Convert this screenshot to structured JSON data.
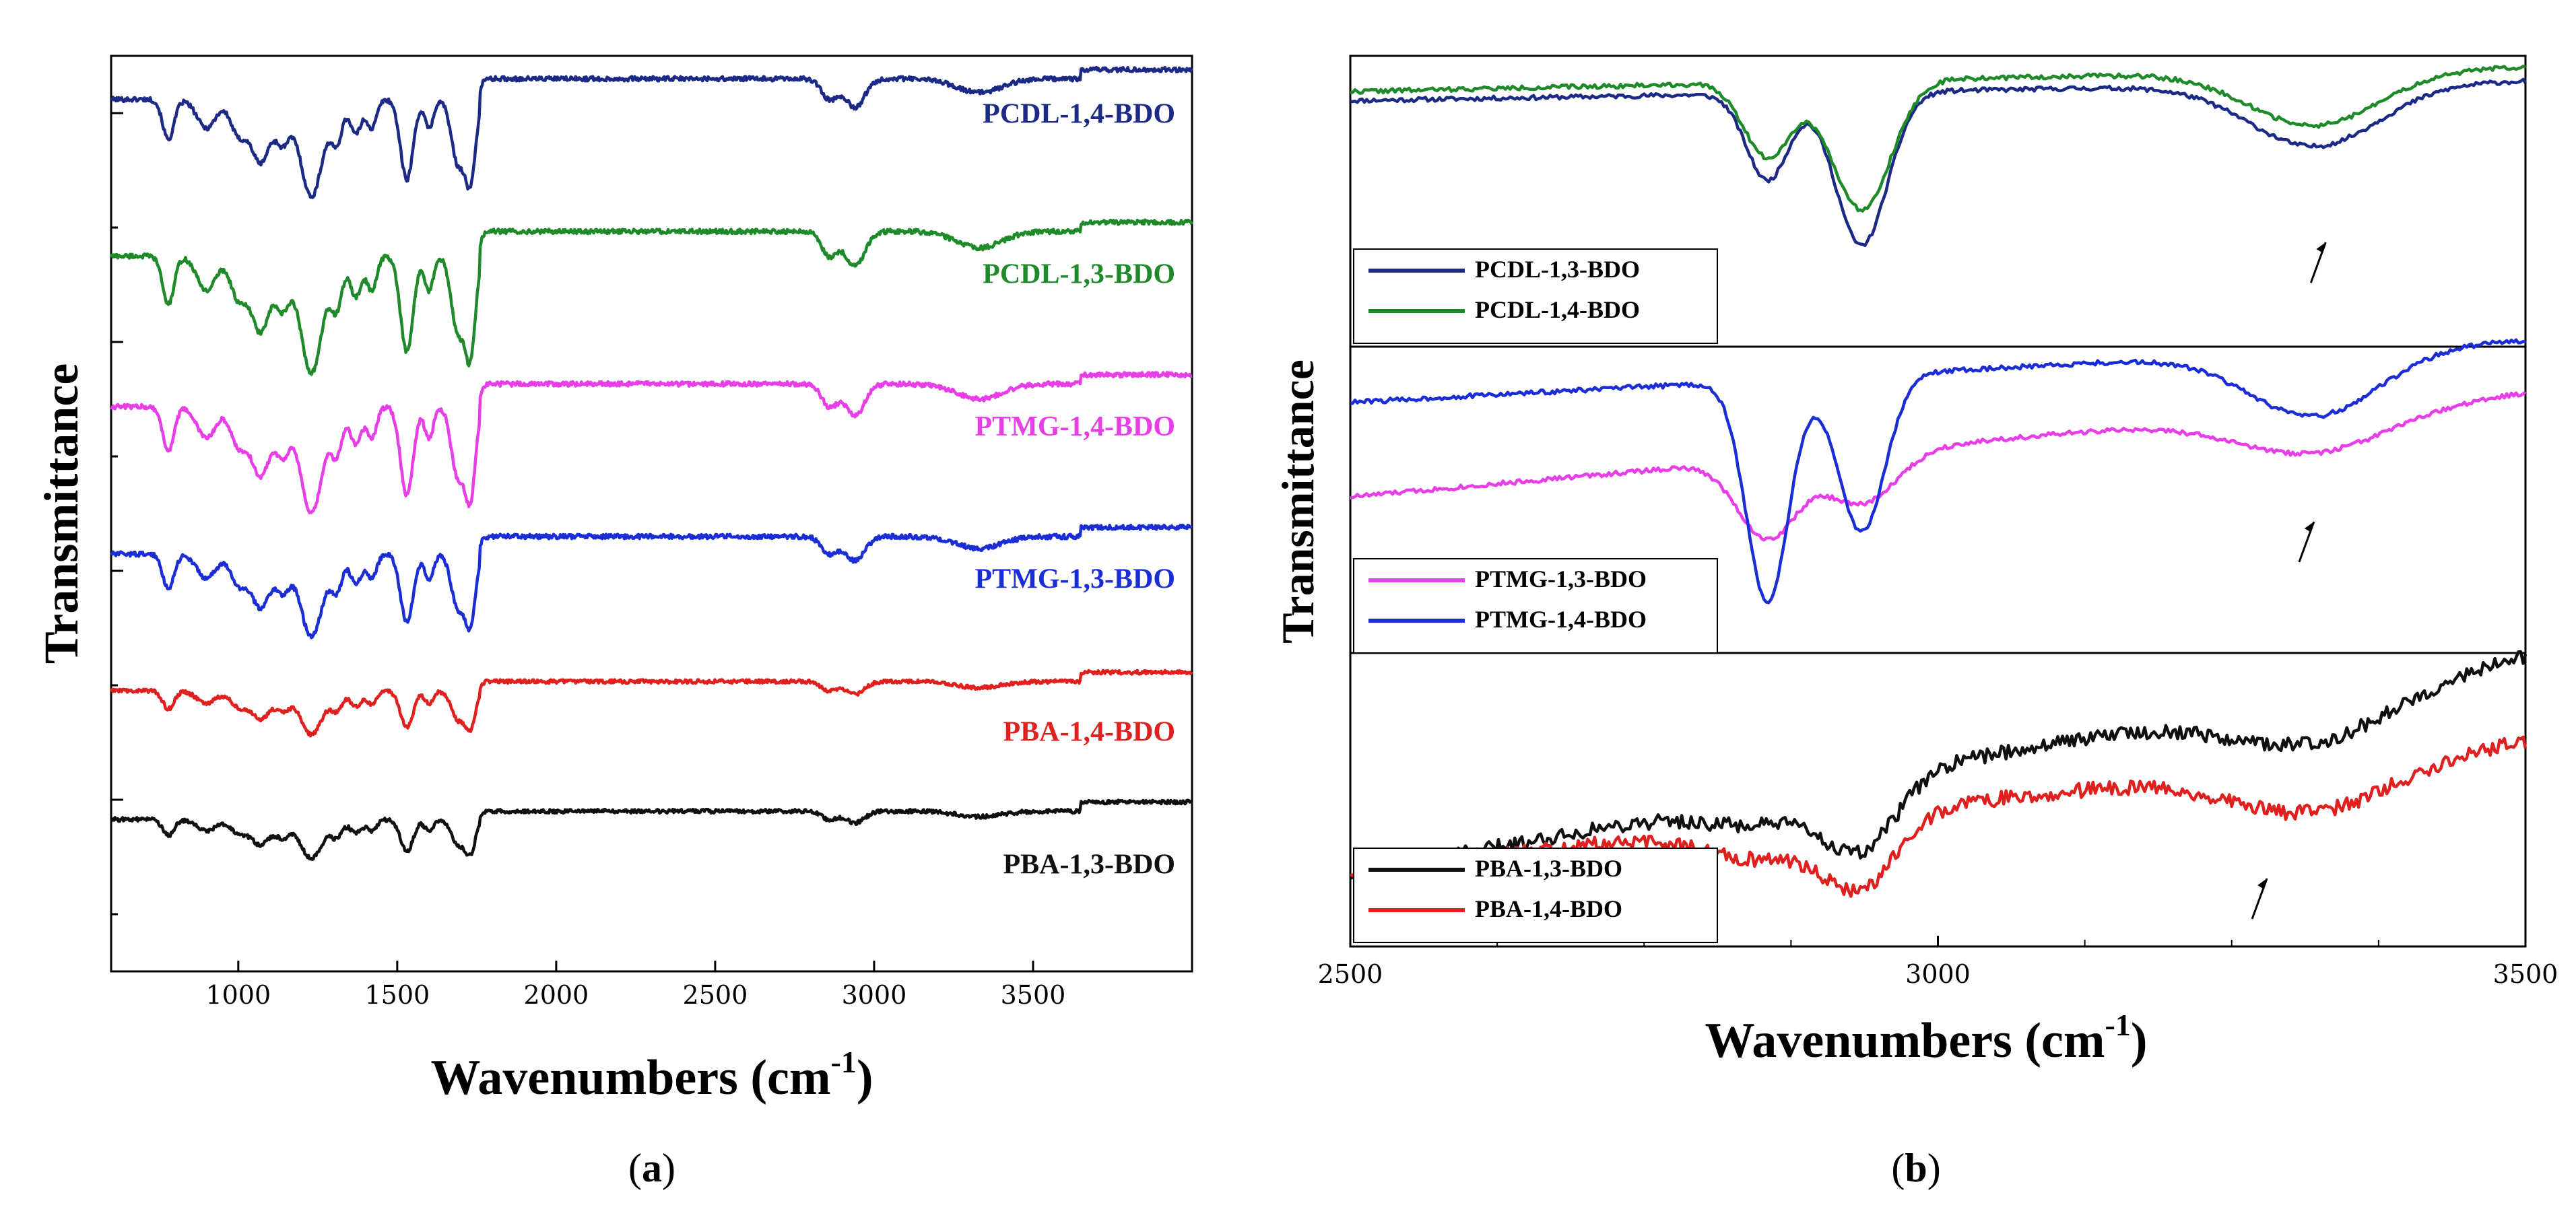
{
  "chart_data": [
    {
      "id": "panel-a",
      "type": "line",
      "caption_prefix": "(",
      "caption_letter": "a",
      "caption_suffix": ")",
      "xlabel": "Wavenumbers (cm",
      "xlabel_sup": "-1",
      "xlabel_close": ")",
      "ylabel": "Transmittance",
      "xlim": [
        600,
        4000
      ],
      "xticks": [
        1000,
        1500,
        2000,
        2500,
        3000,
        3500
      ],
      "series": [
        {
          "name": "PCDL-1,4-BDO",
          "color": "#1c2a86",
          "offset": 5.0,
          "scale": 1.0,
          "noise": 0.03
        },
        {
          "name": "PCDL-1,3-BDO",
          "color": "#1f8a2a",
          "offset": 4.0,
          "scale": 1.2,
          "noise": 0.03
        },
        {
          "name": "PTMG-1,4-BDO",
          "color": "#e83ee8",
          "offset": 3.0,
          "scale": 1.1,
          "noise": 0.03
        },
        {
          "name": "PTMG-1,3-BDO",
          "color": "#1b2ed6",
          "offset": 2.0,
          "scale": 0.85,
          "noise": 0.03
        },
        {
          "name": "PBA-1,4-BDO",
          "color": "#e0201f",
          "offset": 1.05,
          "scale": 0.45,
          "noise": 0.025
        },
        {
          "name": "PBA-1,3-BDO",
          "color": "#101010",
          "offset": 0.2,
          "scale": 0.4,
          "noise": 0.025
        }
      ]
    },
    {
      "id": "panel-b",
      "type": "line",
      "caption_prefix": "(",
      "caption_letter": "b",
      "caption_suffix": ")",
      "xlabel": "Wavenumbers (cm",
      "xlabel_sup": "-1",
      "xlabel_close": ")",
      "ylabel": "Transmittance",
      "xlim": [
        2500,
        3500
      ],
      "xticks": [
        2500,
        3000,
        3500
      ],
      "subplots": [
        {
          "id": "top",
          "legend_position": "bottom-left",
          "series": [
            {
              "name": "PCDL-1,3-BDO",
              "color": "#1c2a86"
            },
            {
              "name": "PCDL-1,4-BDO",
              "color": "#1f8a2a"
            }
          ]
        },
        {
          "id": "middle",
          "legend_position": "bottom-left",
          "series": [
            {
              "name": "PTMG-1,3-BDO",
              "color": "#e83ee8"
            },
            {
              "name": "PTMG-1,4-BDO",
              "color": "#1b2ed6"
            }
          ]
        },
        {
          "id": "bottom",
          "legend_position": "bottom-left",
          "series": [
            {
              "name": "PBA-1,3-BDO",
              "color": "#101010"
            },
            {
              "name": "PBA-1,4-BDO",
              "color": "#e0201f"
            }
          ]
        }
      ]
    }
  ]
}
